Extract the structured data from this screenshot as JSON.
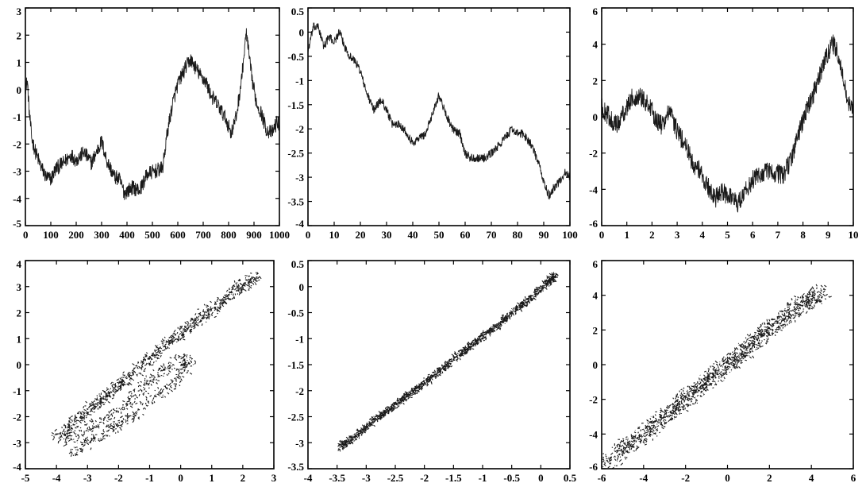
{
  "colors": {
    "line": "#1a1a1a",
    "axis": "#000000",
    "background": "#ffffff"
  },
  "chart_data": [
    {
      "id": "top-left",
      "type": "line",
      "title": "",
      "xlabel": "",
      "ylabel": "",
      "xlim": [
        0,
        1000
      ],
      "ylim": [
        -5,
        3
      ],
      "xticks": [
        0,
        100,
        200,
        300,
        400,
        500,
        600,
        700,
        800,
        900,
        1000
      ],
      "xtick_labels": [
        "0",
        "100",
        "200",
        "300",
        "400",
        "500",
        "600",
        "700",
        "800",
        "900",
        "1000"
      ],
      "yticks": [
        -5,
        -4,
        -3,
        -2,
        -1,
        0,
        1,
        2,
        3
      ],
      "ytick_labels": [
        "-5",
        "-4",
        "-3",
        "-2",
        "-1",
        "0",
        "1",
        "2",
        "3"
      ],
      "noise": 0.28,
      "series": [
        {
          "x": [
            0,
            8,
            15,
            25,
            40,
            60,
            80,
            100,
            120,
            150,
            180,
            200,
            230,
            260,
            290,
            300,
            320,
            350,
            370,
            390,
            420,
            450,
            480,
            510,
            540,
            560,
            580,
            600,
            630,
            650,
            670,
            690,
            710,
            730,
            760,
            790,
            810,
            830,
            850,
            870,
            890,
            910,
            930,
            950,
            970,
            990,
            1000
          ],
          "y": [
            0.1,
            0.3,
            -0.8,
            -1.8,
            -2.3,
            -2.8,
            -3.2,
            -3.3,
            -2.9,
            -2.7,
            -2.4,
            -2.6,
            -2.3,
            -2.7,
            -2.1,
            -1.9,
            -2.6,
            -3.2,
            -3.3,
            -3.8,
            -3.6,
            -3.7,
            -3.1,
            -3.0,
            -2.9,
            -1.5,
            -0.5,
            0.2,
            0.8,
            1.1,
            0.8,
            0.5,
            0.3,
            -0.2,
            -0.6,
            -1.1,
            -1.6,
            -1.0,
            0.3,
            2.1,
            0.5,
            -0.5,
            -0.9,
            -1.5,
            -1.6,
            -1.2,
            -1.3
          ]
        }
      ]
    },
    {
      "id": "top-middle",
      "type": "line",
      "title": "",
      "xlabel": "",
      "ylabel": "",
      "xlim": [
        0,
        100
      ],
      "ylim": [
        -4,
        0.5
      ],
      "xticks": [
        0,
        10,
        20,
        30,
        40,
        50,
        60,
        70,
        80,
        90,
        100
      ],
      "xtick_labels": [
        "0",
        "10",
        "20",
        "30",
        "40",
        "50",
        "60",
        "70",
        "80",
        "90",
        "100"
      ],
      "yticks": [
        -4,
        -3.5,
        -3,
        -2.5,
        -2,
        -1.5,
        -1,
        -0.5,
        0,
        0.5
      ],
      "ytick_labels": [
        "-4",
        "-3.5",
        "-3",
        "-2.5",
        "-2",
        "-1.5",
        "-1",
        "-0.5",
        "0",
        "0.5"
      ],
      "noise": 0.09,
      "series": [
        {
          "x": [
            0,
            2,
            4,
            6,
            8,
            10,
            12,
            14,
            16,
            18,
            20,
            22,
            25,
            28,
            30,
            32,
            35,
            38,
            40,
            42,
            45,
            48,
            50,
            52,
            55,
            58,
            60,
            62,
            65,
            68,
            70,
            72,
            75,
            78,
            80,
            82,
            85,
            88,
            90,
            92,
            94,
            96,
            98,
            100
          ],
          "y": [
            -0.4,
            0.1,
            0.1,
            -0.3,
            -0.1,
            -0.2,
            0.0,
            -0.3,
            -0.5,
            -0.6,
            -0.8,
            -1.2,
            -1.6,
            -1.4,
            -1.6,
            -1.9,
            -1.9,
            -2.1,
            -2.3,
            -2.2,
            -2.1,
            -1.6,
            -1.3,
            -1.6,
            -2.0,
            -2.1,
            -2.5,
            -2.6,
            -2.6,
            -2.6,
            -2.5,
            -2.4,
            -2.2,
            -2.0,
            -2.1,
            -2.1,
            -2.3,
            -2.7,
            -3.1,
            -3.4,
            -3.2,
            -3.1,
            -2.9,
            -3.0
          ]
        }
      ]
    },
    {
      "id": "top-right",
      "type": "line",
      "title": "",
      "xlabel": "",
      "ylabel": "",
      "xlim": [
        0,
        10
      ],
      "ylim": [
        -6,
        6
      ],
      "xticks": [
        0,
        1,
        2,
        3,
        4,
        5,
        6,
        7,
        8,
        9,
        10
      ],
      "xtick_labels": [
        "0",
        "1",
        "2",
        "3",
        "4",
        "5",
        "6",
        "7",
        "8",
        "9",
        "10"
      ],
      "yticks": [
        -6,
        -4,
        -2,
        0,
        2,
        4,
        6
      ],
      "ytick_labels": [
        "-6",
        "-4",
        "-2",
        "0",
        "2",
        "4",
        "6"
      ],
      "noise": 0.55,
      "series": [
        {
          "x": [
            0,
            0.3,
            0.6,
            0.9,
            1.2,
            1.5,
            1.8,
            2.1,
            2.4,
            2.7,
            3.0,
            3.3,
            3.6,
            3.9,
            4.2,
            4.5,
            4.8,
            5.1,
            5.4,
            5.7,
            6.0,
            6.3,
            6.6,
            6.9,
            7.2,
            7.5,
            7.8,
            8.1,
            8.4,
            8.7,
            9.0,
            9.2,
            9.4,
            9.6,
            9.8,
            10
          ],
          "y": [
            0.5,
            0,
            -0.5,
            0.3,
            1.0,
            1.2,
            0.8,
            0.0,
            -0.5,
            0.3,
            -0.8,
            -1.5,
            -2.5,
            -3.0,
            -3.8,
            -4.5,
            -4.2,
            -4.3,
            -4.8,
            -4.1,
            -3.5,
            -3.2,
            -3.0,
            -3.1,
            -3.2,
            -2.5,
            -1.0,
            0.2,
            1.2,
            2.4,
            3.6,
            4.0,
            3.4,
            2.0,
            0.8,
            0.3
          ]
        }
      ]
    },
    {
      "id": "bottom-left",
      "type": "scatter",
      "title": "",
      "xlabel": "",
      "ylabel": "",
      "xlim": [
        -5,
        3
      ],
      "ylim": [
        -4,
        4
      ],
      "xticks": [
        -5,
        -4,
        -3,
        -2,
        -1,
        0,
        1,
        2,
        3
      ],
      "xtick_labels": [
        "-5",
        "-4",
        "-3",
        "-2",
        "-1",
        "0",
        "1",
        "2",
        "3"
      ],
      "yticks": [
        -4,
        -3,
        -2,
        -1,
        0,
        1,
        2,
        3,
        4
      ],
      "ytick_labels": [
        "-4",
        "-3",
        "-2",
        "-1",
        "0",
        "1",
        "2",
        "3",
        "4"
      ],
      "noise": 0.18,
      "series": [
        {
          "x": [
            -4.0,
            -3.5,
            -3.0,
            -2.5,
            -2.0,
            -1.5,
            -1.0,
            -0.5,
            0.0,
            0.5,
            1.0,
            1.5,
            2.0,
            2.4,
            2.0,
            1.5,
            1.0,
            0.5,
            0.0,
            -0.5,
            -1.0,
            -1.5,
            -2.0,
            -2.5,
            -3.0,
            -3.5,
            -3.8,
            -3.2,
            -2.5,
            -2.0,
            -1.5,
            -1.0,
            -0.5,
            0.0,
            0.3,
            0.0,
            -0.5,
            -1.0,
            -1.5,
            -2.0,
            -2.5,
            -3.0,
            -3.5
          ],
          "y": [
            -2.8,
            -2.3,
            -1.8,
            -1.3,
            -0.8,
            -0.3,
            0.2,
            0.8,
            1.2,
            1.7,
            2.2,
            2.6,
            3.0,
            3.4,
            3.1,
            2.6,
            2.0,
            1.6,
            1.2,
            0.8,
            0.2,
            -0.3,
            -0.8,
            -1.2,
            -1.8,
            -2.3,
            -3.0,
            -2.6,
            -2.2,
            -1.7,
            -1.2,
            -0.6,
            -0.2,
            0.2,
            0.2,
            -0.4,
            -0.9,
            -1.4,
            -1.9,
            -2.3,
            -2.7,
            -3.0,
            -3.4
          ]
        }
      ]
    },
    {
      "id": "bottom-middle",
      "type": "scatter",
      "title": "",
      "xlabel": "",
      "ylabel": "",
      "xlim": [
        -4,
        0.5
      ],
      "ylim": [
        -3.5,
        0.5
      ],
      "xticks": [
        -4,
        -3.5,
        -3,
        -2.5,
        -2,
        -1.5,
        -1,
        -0.5,
        0,
        0.5
      ],
      "xtick_labels": [
        "-4",
        "-3.5",
        "-3",
        "-2.5",
        "-2",
        "-1.5",
        "-1",
        "-0.5",
        "0",
        "0.5"
      ],
      "yticks": [
        -3.5,
        -3,
        -2.5,
        -2,
        -1.5,
        -1,
        -0.5,
        0,
        0.5
      ],
      "ytick_labels": [
        "-3.5",
        "-3",
        "-2.5",
        "-2",
        "-1.5",
        "-1",
        "-0.5",
        "0",
        "0.5"
      ],
      "noise": 0.05,
      "series": [
        {
          "x": [
            -3.45,
            -3.2,
            -2.9,
            -2.6,
            -2.3,
            -2.0,
            -1.7,
            -1.4,
            -1.1,
            -0.8,
            -0.5,
            -0.2,
            0.1,
            0.25
          ],
          "y": [
            -3.1,
            -2.9,
            -2.6,
            -2.35,
            -2.1,
            -1.85,
            -1.6,
            -1.3,
            -1.05,
            -0.8,
            -0.5,
            -0.25,
            0.05,
            0.22
          ]
        }
      ]
    },
    {
      "id": "bottom-right",
      "type": "scatter",
      "title": "",
      "xlabel": "",
      "ylabel": "",
      "xlim": [
        -6,
        6
      ],
      "ylim": [
        -6,
        6
      ],
      "xticks": [
        -6,
        -4,
        -2,
        0,
        2,
        4,
        6
      ],
      "xtick_labels": [
        "-6",
        "-4",
        "-2",
        "0",
        "2",
        "4",
        "6"
      ],
      "yticks": [
        -6,
        -4,
        -2,
        0,
        2,
        4,
        6
      ],
      "ytick_labels": [
        "-6",
        "-4",
        "-2",
        "0",
        "2",
        "4",
        "6"
      ],
      "noise": 0.4,
      "series": [
        {
          "x": [
            -5.8,
            -5.0,
            -4.5,
            -4.0,
            -3.5,
            -3.0,
            -2.5,
            -2.0,
            -1.5,
            -1.0,
            -0.5,
            0.0,
            0.5,
            1.0,
            1.5,
            2.0,
            2.5,
            3.0,
            3.5,
            4.0,
            4.5
          ],
          "y": [
            -5.8,
            -4.8,
            -4.5,
            -4.0,
            -3.5,
            -3.0,
            -2.5,
            -2.0,
            -1.5,
            -1.0,
            -0.5,
            0.0,
            0.5,
            1.0,
            1.5,
            2.0,
            2.5,
            3.0,
            3.5,
            3.8,
            4.2
          ]
        }
      ]
    }
  ]
}
